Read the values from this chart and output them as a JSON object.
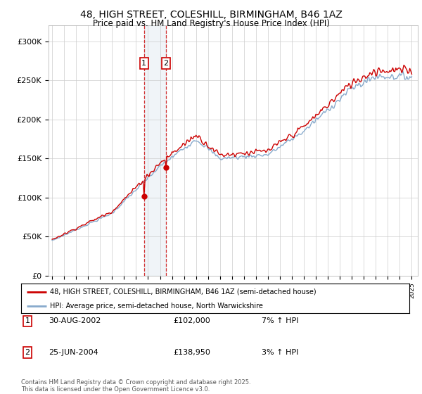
{
  "title_line1": "48, HIGH STREET, COLESHILL, BIRMINGHAM, B46 1AZ",
  "title_line2": "Price paid vs. HM Land Registry's House Price Index (HPI)",
  "ylabel_ticks": [
    "£0",
    "£50K",
    "£100K",
    "£150K",
    "£200K",
    "£250K",
    "£300K"
  ],
  "ytick_values": [
    0,
    50000,
    100000,
    150000,
    200000,
    250000,
    300000
  ],
  "ylim": [
    0,
    320000
  ],
  "year_start": 1995,
  "year_end": 2025,
  "sale1_date": "30-AUG-2002",
  "sale1_year": 2002.667,
  "sale1_price": 102000,
  "sale1_hpi": "7% ↑ HPI",
  "sale2_date": "25-JUN-2004",
  "sale2_year": 2004.5,
  "sale2_price": 138950,
  "sale2_hpi": "3% ↑ HPI",
  "legend_line1": "48, HIGH STREET, COLESHILL, BIRMINGHAM, B46 1AZ (semi-detached house)",
  "legend_line2": "HPI: Average price, semi-detached house, North Warwickshire",
  "footer": "Contains HM Land Registry data © Crown copyright and database right 2025.\nThis data is licensed under the Open Government Licence v3.0.",
  "line_color_red": "#cc0000",
  "line_color_blue": "#88aacc",
  "background_color": "#ffffff",
  "grid_color": "#cccccc"
}
